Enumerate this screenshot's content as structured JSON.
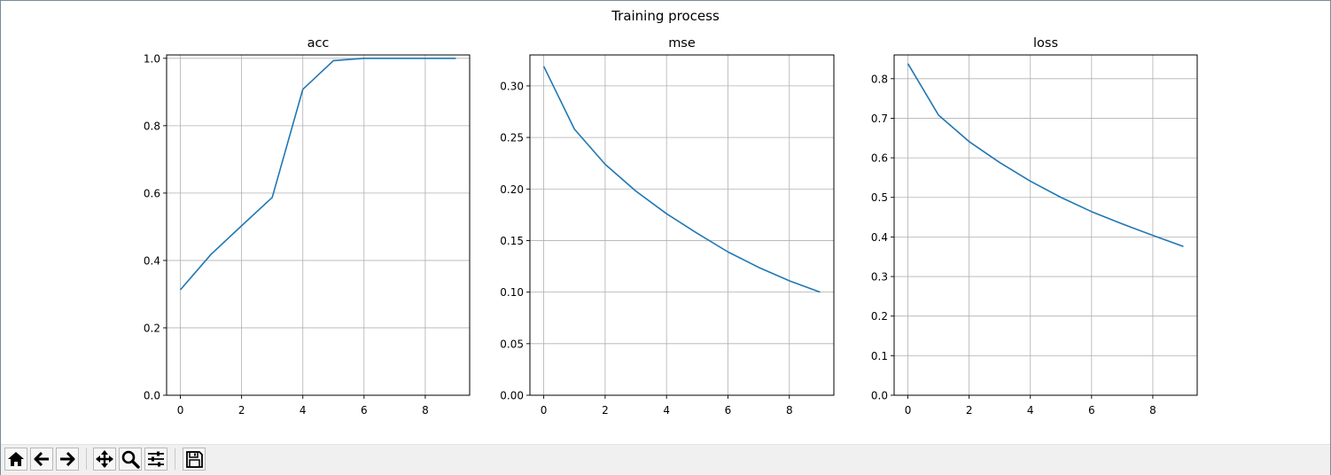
{
  "figure": {
    "suptitle": "Training process"
  },
  "toolbar": {
    "buttons": [
      {
        "name": "home-button",
        "icon": "home-icon"
      },
      {
        "name": "back-button",
        "icon": "arrow-left-icon"
      },
      {
        "name": "forward-button",
        "icon": "arrow-right-icon"
      },
      {
        "name": "pan-button",
        "icon": "move-icon"
      },
      {
        "name": "zoom-button",
        "icon": "magnifier-icon"
      },
      {
        "name": "configure-subplots-button",
        "icon": "sliders-icon"
      },
      {
        "name": "save-button",
        "icon": "floppy-disk-icon"
      }
    ]
  },
  "chart_data": [
    {
      "type": "line",
      "title": "acc",
      "xlabel": "",
      "ylabel": "",
      "x": [
        0,
        1,
        2,
        3,
        4,
        5,
        6,
        7,
        8,
        9
      ],
      "series": [
        {
          "values": [
            0.313,
            0.418,
            0.503,
            0.587,
            0.908,
            0.993,
            1.0,
            1.0,
            1.0,
            1.0
          ],
          "color": "#1f77b4"
        }
      ],
      "xlim": [
        -0.45,
        9.45
      ],
      "ylim": [
        0.0,
        1.01
      ],
      "xticks": [
        0,
        2,
        4,
        6,
        8
      ],
      "xtick_labels": [
        "0",
        "2",
        "4",
        "6",
        "8"
      ],
      "yticks": [
        0.0,
        0.2,
        0.4,
        0.6,
        0.8,
        1.0
      ],
      "ytick_labels": [
        "0.0",
        "0.2",
        "0.4",
        "0.6",
        "0.8",
        "1.0"
      ],
      "grid": true
    },
    {
      "type": "line",
      "title": "mse",
      "xlabel": "",
      "ylabel": "",
      "x": [
        0,
        1,
        2,
        3,
        4,
        5,
        6,
        7,
        8,
        9
      ],
      "series": [
        {
          "values": [
            0.319,
            0.258,
            0.224,
            0.198,
            0.176,
            0.157,
            0.139,
            0.124,
            0.111,
            0.1
          ],
          "color": "#1f77b4"
        }
      ],
      "xlim": [
        -0.45,
        9.45
      ],
      "ylim": [
        0.0,
        0.33
      ],
      "xticks": [
        0,
        2,
        4,
        6,
        8
      ],
      "xtick_labels": [
        "0",
        "2",
        "4",
        "6",
        "8"
      ],
      "yticks": [
        0.0,
        0.05,
        0.1,
        0.15,
        0.2,
        0.25,
        0.3
      ],
      "ytick_labels": [
        "0.00",
        "0.05",
        "0.10",
        "0.15",
        "0.20",
        "0.25",
        "0.30"
      ],
      "grid": true
    },
    {
      "type": "line",
      "title": "loss",
      "xlabel": "",
      "ylabel": "",
      "x": [
        0,
        1,
        2,
        3,
        4,
        5,
        6,
        7,
        8,
        9
      ],
      "series": [
        {
          "values": [
            0.838,
            0.708,
            0.641,
            0.588,
            0.541,
            0.5,
            0.464,
            0.433,
            0.404,
            0.376
          ],
          "color": "#1f77b4"
        }
      ],
      "xlim": [
        -0.45,
        9.45
      ],
      "ylim": [
        0.0,
        0.86
      ],
      "xticks": [
        0,
        2,
        4,
        6,
        8
      ],
      "xtick_labels": [
        "0",
        "2",
        "4",
        "6",
        "8"
      ],
      "yticks": [
        0.0,
        0.1,
        0.2,
        0.3,
        0.4,
        0.5,
        0.6,
        0.7,
        0.8
      ],
      "ytick_labels": [
        "0.0",
        "0.1",
        "0.2",
        "0.3",
        "0.4",
        "0.5",
        "0.6",
        "0.7",
        "0.8"
      ],
      "grid": true
    }
  ]
}
